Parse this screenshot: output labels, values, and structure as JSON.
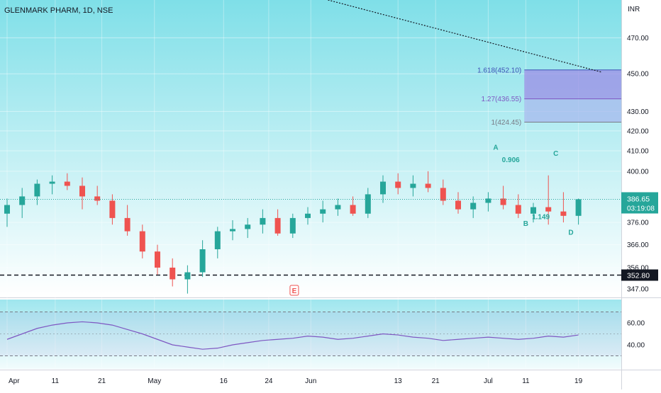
{
  "chart_data": {
    "type": "candlestick",
    "title": "GLENMARK PHARM, 1D, NSE",
    "currency": "INR",
    "x_ticks": [
      "Apr",
      "11",
      "21",
      "May",
      "16",
      "24",
      "Jun",
      "13",
      "21",
      "Jul",
      "11",
      "19"
    ],
    "y_ticks": [
      "470.00",
      "450.00",
      "430.00",
      "420.00",
      "410.00",
      "400.00",
      "386.65",
      "376.00",
      "366.00",
      "356.00",
      "347.00"
    ],
    "y_scale": "log",
    "ylim": [
      344,
      492
    ],
    "last_price": "386.65",
    "countdown": "03:19:08",
    "support_level": 352.8,
    "support_label": "352.80",
    "earnings_marker": "E",
    "colors": {
      "up": "#26a69a",
      "down": "#ef5350",
      "fib_zone": "#9c8ee6",
      "fib_zone_low": "#a8b9ee",
      "rsi_line": "#7e57c2",
      "price_badge": "#26a69a",
      "support_badge": "#131722"
    },
    "fib_levels": [
      {
        "label": "1.618(452.10)",
        "value": 452.1,
        "color": "#3f51b5"
      },
      {
        "label": "1.27(436.55)",
        "value": 436.55,
        "color": "#7e57c2"
      },
      {
        "label": "1(424.45)",
        "value": 424.45,
        "color": "#787b86"
      }
    ],
    "wave_labels": [
      {
        "text": "A",
        "x": 32.5,
        "y": 410.5
      },
      {
        "text": "0.906",
        "x": 33.5,
        "y": 404.5
      },
      {
        "text": "C",
        "x": 36.5,
        "y": 407.5
      },
      {
        "text": "B",
        "x": 34.5,
        "y": 374.5
      },
      {
        "text": "1.149",
        "x": 35.5,
        "y": 377.5
      },
      {
        "text": "D",
        "x": 37.5,
        "y": 370.5
      }
    ],
    "trendline": [
      {
        "x": 0,
        "y": 545
      },
      {
        "x": 39.5,
        "y": 451
      }
    ],
    "candles": [
      {
        "o": 380,
        "h": 387,
        "l": 374,
        "c": 384
      },
      {
        "o": 384,
        "h": 392,
        "l": 378,
        "c": 388
      },
      {
        "o": 388,
        "h": 396,
        "l": 384,
        "c": 394
      },
      {
        "o": 394,
        "h": 398,
        "l": 389,
        "c": 395
      },
      {
        "o": 395,
        "h": 399,
        "l": 391,
        "c": 393
      },
      {
        "o": 393,
        "h": 397,
        "l": 382,
        "c": 388
      },
      {
        "o": 388,
        "h": 393,
        "l": 384,
        "c": 386
      },
      {
        "o": 386,
        "h": 389,
        "l": 375,
        "c": 378
      },
      {
        "o": 378,
        "h": 384,
        "l": 370,
        "c": 372
      },
      {
        "o": 372,
        "h": 375,
        "l": 360,
        "c": 363
      },
      {
        "o": 363,
        "h": 366,
        "l": 353,
        "c": 356
      },
      {
        "o": 356,
        "h": 360,
        "l": 348,
        "c": 351
      },
      {
        "o": 351,
        "h": 357,
        "l": 345,
        "c": 354
      },
      {
        "o": 354,
        "h": 368,
        "l": 352,
        "c": 364
      },
      {
        "o": 364,
        "h": 374,
        "l": 360,
        "c": 372
      },
      {
        "o": 372,
        "h": 377,
        "l": 368,
        "c": 373
      },
      {
        "o": 373,
        "h": 378,
        "l": 369,
        "c": 375
      },
      {
        "o": 375,
        "h": 382,
        "l": 371,
        "c": 378
      },
      {
        "o": 378,
        "h": 382,
        "l": 370,
        "c": 371
      },
      {
        "o": 371,
        "h": 380,
        "l": 369,
        "c": 378
      },
      {
        "o": 378,
        "h": 383,
        "l": 375,
        "c": 380
      },
      {
        "o": 380,
        "h": 386,
        "l": 376,
        "c": 382
      },
      {
        "o": 382,
        "h": 387,
        "l": 379,
        "c": 384
      },
      {
        "o": 384,
        "h": 388,
        "l": 379,
        "c": 380
      },
      {
        "o": 380,
        "h": 392,
        "l": 378,
        "c": 389
      },
      {
        "o": 389,
        "h": 398,
        "l": 385,
        "c": 395
      },
      {
        "o": 395,
        "h": 399,
        "l": 389,
        "c": 392
      },
      {
        "o": 392,
        "h": 398,
        "l": 388,
        "c": 394
      },
      {
        "o": 394,
        "h": 400,
        "l": 390,
        "c": 392
      },
      {
        "o": 392,
        "h": 396,
        "l": 384,
        "c": 386
      },
      {
        "o": 386,
        "h": 390,
        "l": 380,
        "c": 382
      },
      {
        "o": 382,
        "h": 388,
        "l": 378,
        "c": 385
      },
      {
        "o": 385,
        "h": 390,
        "l": 381,
        "c": 387
      },
      {
        "o": 387,
        "h": 393,
        "l": 382,
        "c": 384
      },
      {
        "o": 384,
        "h": 389,
        "l": 378,
        "c": 380
      },
      {
        "o": 380,
        "h": 385,
        "l": 376,
        "c": 383
      },
      {
        "o": 383,
        "h": 398,
        "l": 375,
        "c": 381
      },
      {
        "o": 381,
        "h": 390,
        "l": 376,
        "c": 379
      },
      {
        "o": 379,
        "h": 387,
        "l": 375,
        "c": 386.65
      }
    ],
    "rsi": {
      "ylim": [
        20,
        80
      ],
      "ticks": [
        "60.00",
        "40.00"
      ],
      "bands": [
        70,
        30
      ],
      "values": [
        45,
        50,
        55,
        58,
        60,
        61,
        60,
        58,
        54,
        50,
        45,
        40,
        38,
        36,
        37,
        40,
        42,
        44,
        45,
        46,
        48,
        47,
        45,
        46,
        48,
        50,
        49,
        47,
        46,
        44,
        45,
        46,
        47,
        46,
        45,
        46,
        48,
        47,
        49
      ]
    }
  }
}
